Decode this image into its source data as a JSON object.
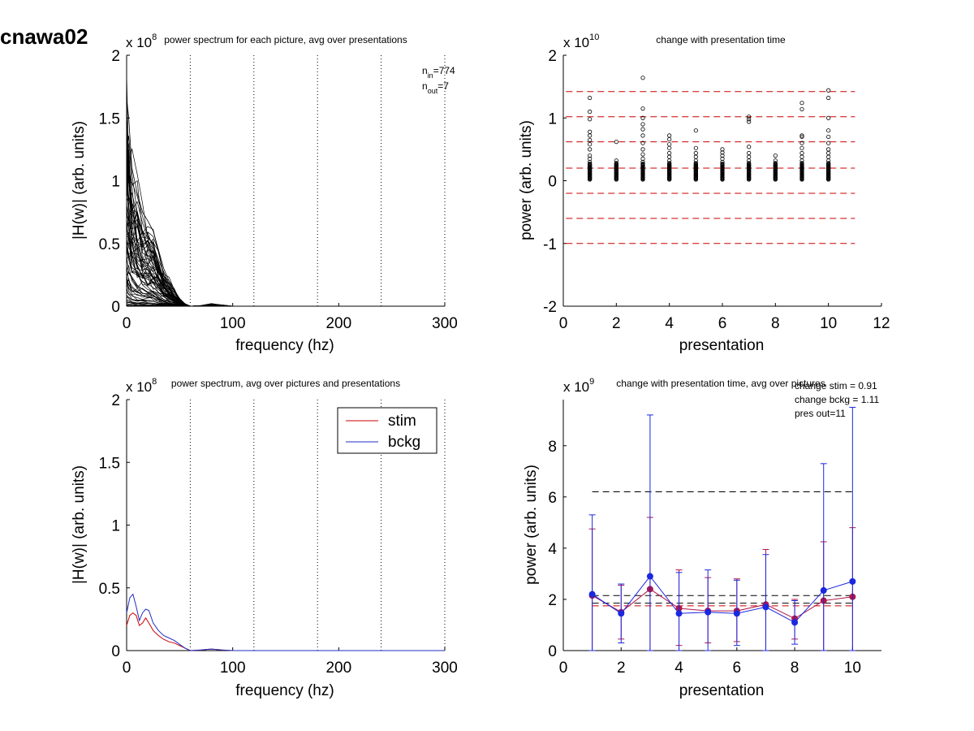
{
  "figure": {
    "title": "cnawa02"
  },
  "chart_data": [
    {
      "id": "p1",
      "type": "line",
      "title": "power spectrum for each picture, avg over presentations",
      "xlabel": "frequency (hz)",
      "ylabel": "|H(w)| (arb. units)",
      "exponent_base": "x 10",
      "exponent_power": "8",
      "xlim": [
        0,
        300
      ],
      "ylim": [
        0,
        2
      ],
      "xticks": [
        0,
        100,
        200,
        300
      ],
      "xtick_labels": [
        "0",
        "100",
        "200",
        "300"
      ],
      "yticks": [
        0,
        0.5,
        1,
        1.5,
        2
      ],
      "ytick_labels": [
        "0",
        "0.5",
        "1",
        "1.5",
        "2"
      ],
      "vlines": [
        60,
        120,
        180,
        240,
        300
      ],
      "annotations": [
        {
          "base": "n",
          "sub": "in",
          "rest": "=774"
        },
        {
          "base": "n",
          "sub": "out",
          "rest": "=7"
        }
      ],
      "traces": {
        "note_x": [
          0,
          2,
          5,
          10,
          15,
          20,
          25,
          30,
          35,
          40,
          45,
          50,
          55,
          60,
          70,
          80,
          90,
          100,
          150,
          200,
          300
        ],
        "color": "#000000",
        "envelope_upper": [
          1.66,
          1.5,
          1.1,
          0.9,
          0.75,
          0.68,
          0.6,
          0.45,
          0.3,
          0.2,
          0.12,
          0.06,
          0.02,
          0.0,
          0.005,
          0.02,
          0.01,
          0.0,
          0.0,
          0.0,
          0.0
        ]
      }
    },
    {
      "id": "p2",
      "type": "scatter",
      "title": "change with presentation time",
      "xlabel": "presentation",
      "ylabel": "power (arb. units)",
      "exponent_base": "x 10",
      "exponent_power": "10",
      "xlim": [
        0,
        12
      ],
      "ylim": [
        -2,
        2
      ],
      "xticks": [
        0,
        2,
        4,
        6,
        8,
        10,
        12
      ],
      "xtick_labels": [
        "0",
        "2",
        "4",
        "6",
        "8",
        "10",
        "12"
      ],
      "yticks": [
        -2,
        -1,
        0,
        1,
        2
      ],
      "ytick_labels": [
        "-2",
        "-1",
        "0",
        "1",
        "2"
      ],
      "hlines": [
        1.42,
        1.02,
        0.62,
        0.2,
        -0.2,
        -0.6,
        -1.0
      ],
      "hline_color": "#cc0000",
      "points": [
        {
          "x": 1,
          "y": [
            1.32,
            1.1,
            0.98,
            0.78,
            0.72,
            0.65,
            0.58,
            0.5,
            0.4,
            0.35,
            0.3,
            0.25,
            0.2,
            0.15,
            0.1,
            0.05,
            0.02
          ]
        },
        {
          "x": 2,
          "y": [
            0.62,
            0.32,
            0.28,
            0.24,
            0.2,
            0.16,
            0.12,
            0.08,
            0.05,
            0.02
          ]
        },
        {
          "x": 3,
          "y": [
            1.64,
            1.15,
            1.0,
            0.9,
            0.82,
            0.72,
            0.6,
            0.5,
            0.42,
            0.35,
            0.3,
            0.25,
            0.2,
            0.15,
            0.1,
            0.05,
            0.02
          ]
        },
        {
          "x": 4,
          "y": [
            0.72,
            0.66,
            0.58,
            0.52,
            0.44,
            0.38,
            0.32,
            0.28,
            0.24,
            0.2,
            0.15,
            0.1,
            0.05,
            0.02
          ]
        },
        {
          "x": 5,
          "y": [
            0.8,
            0.52,
            0.44,
            0.38,
            0.32,
            0.28,
            0.24,
            0.2,
            0.15,
            0.1,
            0.05,
            0.02
          ]
        },
        {
          "x": 6,
          "y": [
            0.5,
            0.45,
            0.4,
            0.35,
            0.3,
            0.25,
            0.2,
            0.15,
            0.1,
            0.05,
            0.02
          ]
        },
        {
          "x": 7,
          "y": [
            1.02,
            0.98,
            0.94,
            0.54,
            0.44,
            0.38,
            0.32,
            0.28,
            0.24,
            0.2,
            0.15,
            0.1,
            0.05,
            0.02
          ]
        },
        {
          "x": 8,
          "y": [
            0.4,
            0.32,
            0.28,
            0.24,
            0.2,
            0.16,
            0.12,
            0.08,
            0.05,
            0.02
          ]
        },
        {
          "x": 9,
          "y": [
            1.24,
            1.14,
            0.72,
            0.7,
            0.6,
            0.52,
            0.44,
            0.38,
            0.32,
            0.28,
            0.24,
            0.2,
            0.15,
            0.1,
            0.05,
            0.02
          ]
        },
        {
          "x": 10,
          "y": [
            1.44,
            1.32,
            1.0,
            0.8,
            0.7,
            0.6,
            0.5,
            0.44,
            0.38,
            0.32,
            0.28,
            0.24,
            0.2,
            0.15,
            0.1,
            0.05,
            0.02
          ]
        }
      ]
    },
    {
      "id": "p3",
      "type": "line",
      "title": "power spectrum, avg over pictures and presentations",
      "xlabel": "frequency (hz)",
      "ylabel": "|H(w)| (arb. units)",
      "exponent_base": "x 10",
      "exponent_power": "8",
      "xlim": [
        0,
        300
      ],
      "ylim": [
        0,
        2
      ],
      "xticks": [
        0,
        100,
        200,
        300
      ],
      "xtick_labels": [
        "0",
        "100",
        "200",
        "300"
      ],
      "yticks": [
        0,
        0.5,
        1,
        1.5,
        2
      ],
      "ytick_labels": [
        "0",
        "0.5",
        "1",
        "1.5",
        "2"
      ],
      "vlines": [
        60,
        120,
        180,
        240,
        300
      ],
      "legend": {
        "placement": "top-right"
      },
      "series": [
        {
          "name": "stim",
          "color": "#cc0000",
          "x": [
            0,
            3,
            6,
            9,
            12,
            15,
            18,
            21,
            25,
            30,
            35,
            40,
            45,
            50,
            55,
            60,
            70,
            80,
            90,
            100,
            150,
            200,
            300
          ],
          "y": [
            0.2,
            0.28,
            0.3,
            0.28,
            0.2,
            0.22,
            0.26,
            0.22,
            0.16,
            0.12,
            0.09,
            0.07,
            0.06,
            0.04,
            0.02,
            0.0,
            0.005,
            0.012,
            0.005,
            0.0,
            0.0,
            0.0,
            0.0
          ]
        },
        {
          "name": "bckg",
          "color": "#1f2fc0",
          "x": [
            0,
            3,
            6,
            9,
            12,
            15,
            18,
            21,
            25,
            30,
            35,
            40,
            45,
            50,
            55,
            60,
            70,
            80,
            90,
            100,
            150,
            200,
            300
          ],
          "y": [
            0.3,
            0.42,
            0.45,
            0.35,
            0.24,
            0.3,
            0.33,
            0.32,
            0.22,
            0.16,
            0.12,
            0.1,
            0.08,
            0.05,
            0.02,
            0.0,
            0.005,
            0.012,
            0.005,
            0.0,
            0.0,
            0.0,
            0.0
          ]
        }
      ]
    },
    {
      "id": "p4",
      "type": "line",
      "title": "change with presentation time, avg over pictures",
      "xlabel": "presentation",
      "ylabel": "power (arb. units)",
      "exponent_base": "x 10",
      "exponent_power": "9",
      "xlim": [
        0,
        11
      ],
      "ylim": [
        0,
        9.8
      ],
      "xticks": [
        0,
        2,
        4,
        6,
        8,
        10
      ],
      "xtick_labels": [
        "0",
        "2",
        "4",
        "6",
        "8",
        "10"
      ],
      "yticks": [
        0,
        2,
        4,
        6,
        8
      ],
      "ytick_labels": [
        "0",
        "2",
        "4",
        "6",
        "8"
      ],
      "annotations": [
        "change stim = 0.91",
        "change bckg = 1.11",
        "pres out=11"
      ],
      "hlines": [
        {
          "y": 6.2,
          "color": "#000000",
          "x": [
            1,
            10
          ]
        },
        {
          "y": 2.15,
          "color": "#000000",
          "x": [
            1,
            10
          ]
        },
        {
          "y": 1.85,
          "color": "#000000",
          "x": [
            1,
            10
          ]
        },
        {
          "y": 1.75,
          "color": "#cc0000",
          "x": [
            1,
            10
          ]
        }
      ],
      "x": [
        1,
        2,
        3,
        4,
        5,
        6,
        7,
        8,
        9,
        10
      ],
      "series": [
        {
          "name": "stim",
          "color": "#b0174a",
          "values": [
            2.15,
            1.5,
            2.4,
            1.65,
            1.55,
            1.55,
            1.8,
            1.25,
            1.95,
            2.1
          ],
          "err_upper": [
            4.75,
            2.55,
            5.2,
            3.15,
            2.85,
            2.8,
            3.95,
            2.0,
            4.25,
            4.8
          ],
          "err_lower": [
            0.0,
            0.45,
            0.0,
            0.2,
            0.3,
            0.35,
            0.0,
            0.45,
            0.0,
            0.0
          ]
        },
        {
          "name": "bckg",
          "color": "#1a28e0",
          "values": [
            2.2,
            1.45,
            2.9,
            1.45,
            1.5,
            1.45,
            1.7,
            1.1,
            2.35,
            2.7
          ],
          "err_upper": [
            5.3,
            2.6,
            9.2,
            3.05,
            3.15,
            2.75,
            3.75,
            1.95,
            7.3,
            9.5
          ],
          "err_lower": [
            0.0,
            0.3,
            0.0,
            0.0,
            0.0,
            0.2,
            0.0,
            0.25,
            0.0,
            0.0
          ]
        }
      ]
    }
  ]
}
